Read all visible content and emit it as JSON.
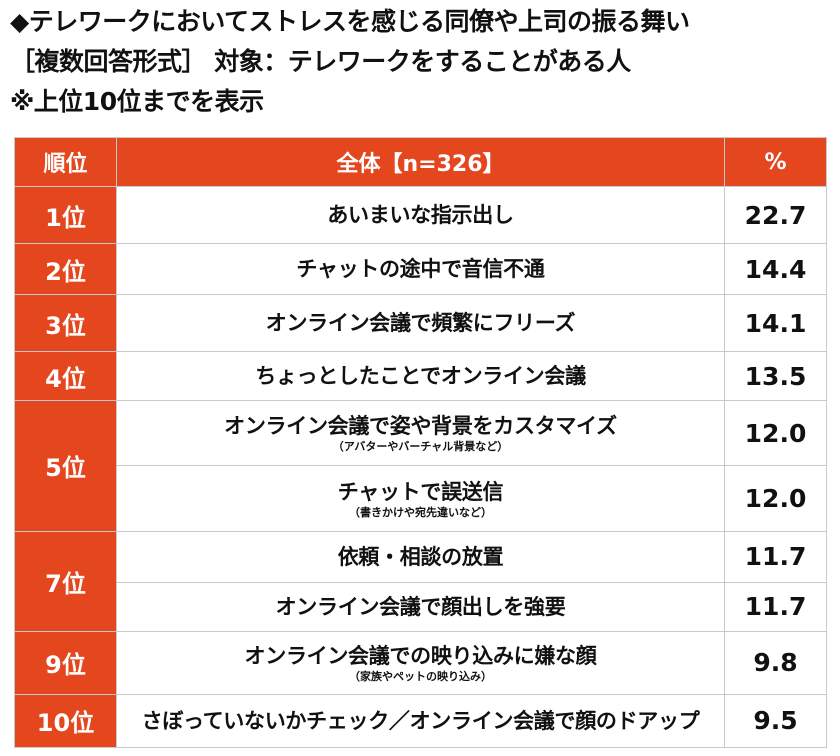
{
  "title": {
    "line1": "◆テレワークにおいてストレスを感じる同僚や上司の振る舞い",
    "line2": "［複数回答形式］ 対象：テレワークをすることがある人",
    "line3": "※上位10位までを表示"
  },
  "header": {
    "rank": "順位",
    "label": "全体【n=326】",
    "value": "%"
  },
  "colors": {
    "accent": "#e4461e",
    "border": "#c9c9c9",
    "text": "#111111"
  },
  "chart_data": {
    "type": "table",
    "unit": "%",
    "rows": [
      {
        "rank": "1位",
        "label": "あいまいな指示出し",
        "note": "",
        "value": 22.7
      },
      {
        "rank": "2位",
        "label": "チャットの途中で音信不通",
        "note": "",
        "value": 14.4
      },
      {
        "rank": "3位",
        "label": "オンライン会議で頻繁にフリーズ",
        "note": "",
        "value": 14.1
      },
      {
        "rank": "4位",
        "label": "ちょっとしたことでオンライン会議",
        "note": "",
        "value": 13.5
      },
      {
        "rank": "5位",
        "label": "オンライン会議で姿や背景をカスタマイズ",
        "note": "（アバターやバーチャル背景など）",
        "value": 12.0
      },
      {
        "rank": "5位",
        "label": "チャットで誤送信",
        "note": "（書きかけや宛先違いなど）",
        "value": 12.0
      },
      {
        "rank": "7位",
        "label": "依頼・相談の放置",
        "note": "",
        "value": 11.7
      },
      {
        "rank": "7位",
        "label": "オンライン会議で顔出しを強要",
        "note": "",
        "value": 11.7
      },
      {
        "rank": "9位",
        "label": "オンライン会議での映り込みに嫌な顔",
        "note": "（家族やペットの映り込み）",
        "value": 9.8
      },
      {
        "rank": "10位",
        "label": "さぼっていないかチェック／オンライン会議で顔のドアップ",
        "note": "",
        "value": 9.5
      }
    ]
  }
}
